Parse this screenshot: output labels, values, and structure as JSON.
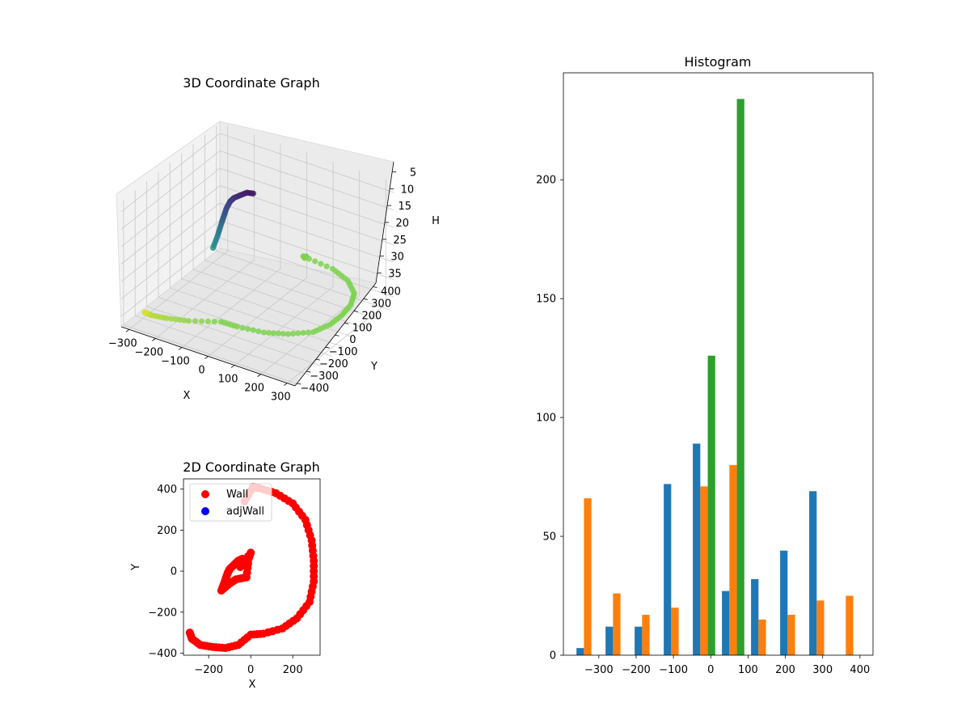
{
  "chart_data": [
    {
      "type": "scatter3d",
      "title": "3D Coordinate Graph",
      "xlabel": "X",
      "ylabel": "Y",
      "zlabel": "H",
      "xlim": [
        -330,
        330
      ],
      "ylim": [
        -420,
        430
      ],
      "zlim": [
        2,
        38
      ],
      "z_inverted": true,
      "xticks": [
        -300,
        -200,
        -100,
        0,
        100,
        200,
        300
      ],
      "yticks": [
        -400,
        -300,
        -200,
        -100,
        0,
        100,
        200,
        300,
        400
      ],
      "zticks": [
        5,
        10,
        15,
        20,
        25,
        30,
        35
      ],
      "grid": true,
      "colormap": "viridis",
      "points_sampled": [
        [
          -40,
          60,
          5
        ],
        [
          -60,
          50,
          5
        ],
        [
          -80,
          40,
          6
        ],
        [
          -100,
          30,
          7
        ],
        [
          -110,
          20,
          8
        ],
        [
          -120,
          10,
          10
        ],
        [
          -125,
          0,
          12
        ],
        [
          -130,
          -10,
          14
        ],
        [
          -135,
          -30,
          17
        ],
        [
          -140,
          -60,
          20
        ],
        [
          20,
          380,
          30
        ],
        [
          10,
          390,
          31
        ],
        [
          0,
          400,
          31
        ],
        [
          120,
          380,
          31
        ],
        [
          200,
          330,
          31
        ],
        [
          260,
          250,
          31
        ],
        [
          290,
          150,
          31
        ],
        [
          300,
          50,
          31
        ],
        [
          300,
          -50,
          31
        ],
        [
          280,
          -150,
          31
        ],
        [
          220,
          -230,
          31
        ],
        [
          150,
          -280,
          31
        ],
        [
          60,
          -305,
          31
        ],
        [
          0,
          -310,
          31
        ],
        [
          -100,
          -360,
          32
        ],
        [
          -180,
          -370,
          33
        ],
        [
          -240,
          -360,
          34
        ],
        [
          -280,
          -330,
          35
        ],
        [
          -290,
          -300,
          36
        ]
      ]
    },
    {
      "type": "bar",
      "title": "Histogram",
      "xlim": [
        -395,
        435
      ],
      "ylim": [
        0,
        245
      ],
      "xticks": [
        -300,
        -200,
        -100,
        0,
        100,
        200,
        300,
        400
      ],
      "yticks": [
        0,
        50,
        100,
        150,
        200
      ],
      "series": [
        {
          "color": "#1f77b4",
          "bins": [
            {
              "x": -350,
              "value": 3
            },
            {
              "x": -272,
              "value": 12
            },
            {
              "x": -194,
              "value": 12
            },
            {
              "x": -116,
              "value": 72
            },
            {
              "x": -38,
              "value": 89
            },
            {
              "x": 40,
              "value": 27
            },
            {
              "x": 118,
              "value": 32
            },
            {
              "x": 196,
              "value": 44
            },
            {
              "x": 274,
              "value": 69
            }
          ]
        },
        {
          "color": "#ff7f0e",
          "bins": [
            {
              "x": -330,
              "value": 66
            },
            {
              "x": -252,
              "value": 26
            },
            {
              "x": -174,
              "value": 17
            },
            {
              "x": -96,
              "value": 20
            },
            {
              "x": -18,
              "value": 71
            },
            {
              "x": 60,
              "value": 80
            },
            {
              "x": 138,
              "value": 15
            },
            {
              "x": 216,
              "value": 17
            },
            {
              "x": 294,
              "value": 23
            },
            {
              "x": 372,
              "value": 25
            }
          ]
        },
        {
          "color": "#2ca02c",
          "bins": [
            {
              "x": 2,
              "value": 126
            },
            {
              "x": 80,
              "value": 234
            }
          ]
        }
      ]
    },
    {
      "type": "scatter",
      "title": "2D Coordinate Graph",
      "xlabel": "X",
      "ylabel": "Y",
      "xlim": [
        -320,
        330
      ],
      "ylim": [
        -410,
        450
      ],
      "xticks": [
        -200,
        0,
        200
      ],
      "yticks": [
        -400,
        -200,
        0,
        200,
        400
      ],
      "legend_position": "upper-left",
      "series": [
        {
          "name": "Wall",
          "color": "#ff0000",
          "points_sampled": [
            [
              -290,
              -300
            ],
            [
              -280,
              -330
            ],
            [
              -240,
              -360
            ],
            [
              -180,
              -370
            ],
            [
              -120,
              -375
            ],
            [
              -60,
              -360
            ],
            [
              0,
              -310
            ],
            [
              60,
              -305
            ],
            [
              150,
              -280
            ],
            [
              220,
              -230
            ],
            [
              280,
              -150
            ],
            [
              300,
              -50
            ],
            [
              300,
              50
            ],
            [
              290,
              150
            ],
            [
              260,
              250
            ],
            [
              200,
              330
            ],
            [
              120,
              380
            ],
            [
              40,
              405
            ],
            [
              10,
              410
            ],
            [
              -30,
              340
            ],
            [
              -40,
              60
            ],
            [
              -60,
              50
            ],
            [
              -80,
              30
            ],
            [
              -100,
              10
            ],
            [
              -110,
              -10
            ],
            [
              -120,
              -40
            ],
            [
              -140,
              -95
            ],
            [
              -100,
              -60
            ],
            [
              -70,
              -40
            ],
            [
              -20,
              -30
            ],
            [
              -10,
              60
            ],
            [
              0,
              90
            ],
            [
              -50,
              20
            ]
          ]
        },
        {
          "name": "adjWall",
          "color": "#0000ff",
          "points_sampled": []
        }
      ]
    }
  ]
}
